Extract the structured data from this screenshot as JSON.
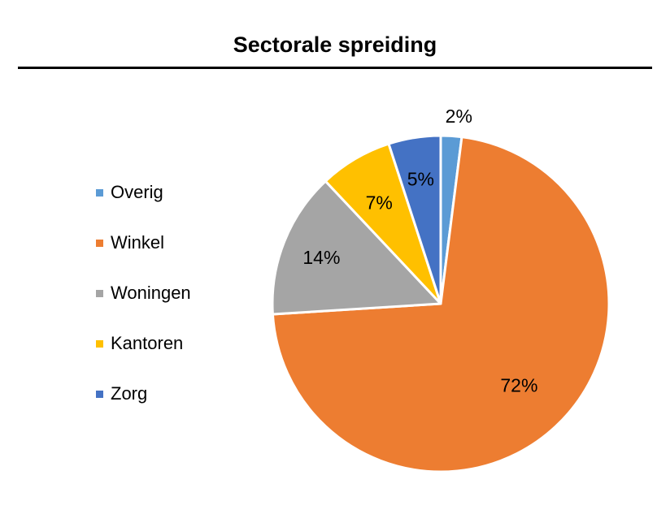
{
  "chart_data": {
    "type": "pie",
    "title": "Sectorale spreiding",
    "categories": [
      "Overig",
      "Winkel",
      "Woningen",
      "Kantoren",
      "Zorg"
    ],
    "values": [
      2,
      72,
      14,
      7,
      5
    ],
    "data_labels": [
      "2%",
      "72%",
      "14%",
      "7%",
      "5%"
    ],
    "colors": [
      "#5B9BD5",
      "#ED7D31",
      "#A5A5A5",
      "#FFC000",
      "#4472C4"
    ],
    "legend_position": "left",
    "start_angle": "12 o'clock",
    "direction": "clockwise"
  }
}
